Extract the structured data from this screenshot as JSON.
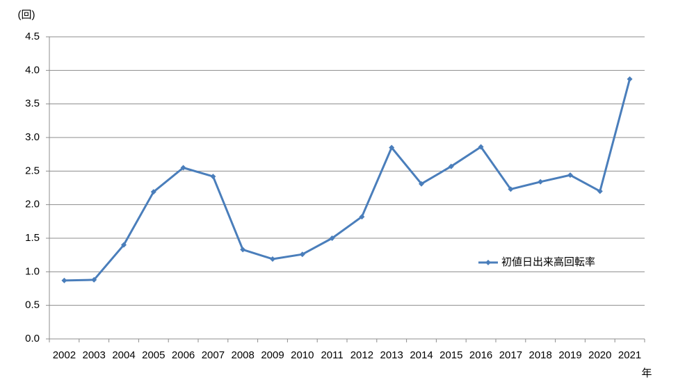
{
  "chart_data": {
    "type": "line",
    "y_label": "(回)",
    "x_label": "年",
    "categories": [
      "2002",
      "2003",
      "2004",
      "2005",
      "2006",
      "2007",
      "2008",
      "2009",
      "2010",
      "2011",
      "2012",
      "2013",
      "2014",
      "2015",
      "2016",
      "2017",
      "2018",
      "2019",
      "2020",
      "2021"
    ],
    "series": [
      {
        "name": "初値日出来高回転率",
        "color": "#4a7ebb",
        "values": [
          0.87,
          0.88,
          1.4,
          2.19,
          2.55,
          2.42,
          1.33,
          1.19,
          1.26,
          1.5,
          1.82,
          2.85,
          2.31,
          2.57,
          2.86,
          2.23,
          2.34,
          2.44,
          2.2,
          3.87
        ]
      }
    ],
    "ylim": [
      0,
      4.5
    ],
    "yticks": [
      {
        "value": 0,
        "label": "0.0"
      },
      0.5,
      {
        "value": 1,
        "label": "1.0"
      },
      1.5,
      {
        "value": 2,
        "label": "2.0"
      },
      2.5,
      {
        "value": 3,
        "label": "3.0"
      },
      3.5,
      {
        "value": 4,
        "label": "4.0"
      },
      4.5
    ],
    "grid": true,
    "legend": "right"
  }
}
